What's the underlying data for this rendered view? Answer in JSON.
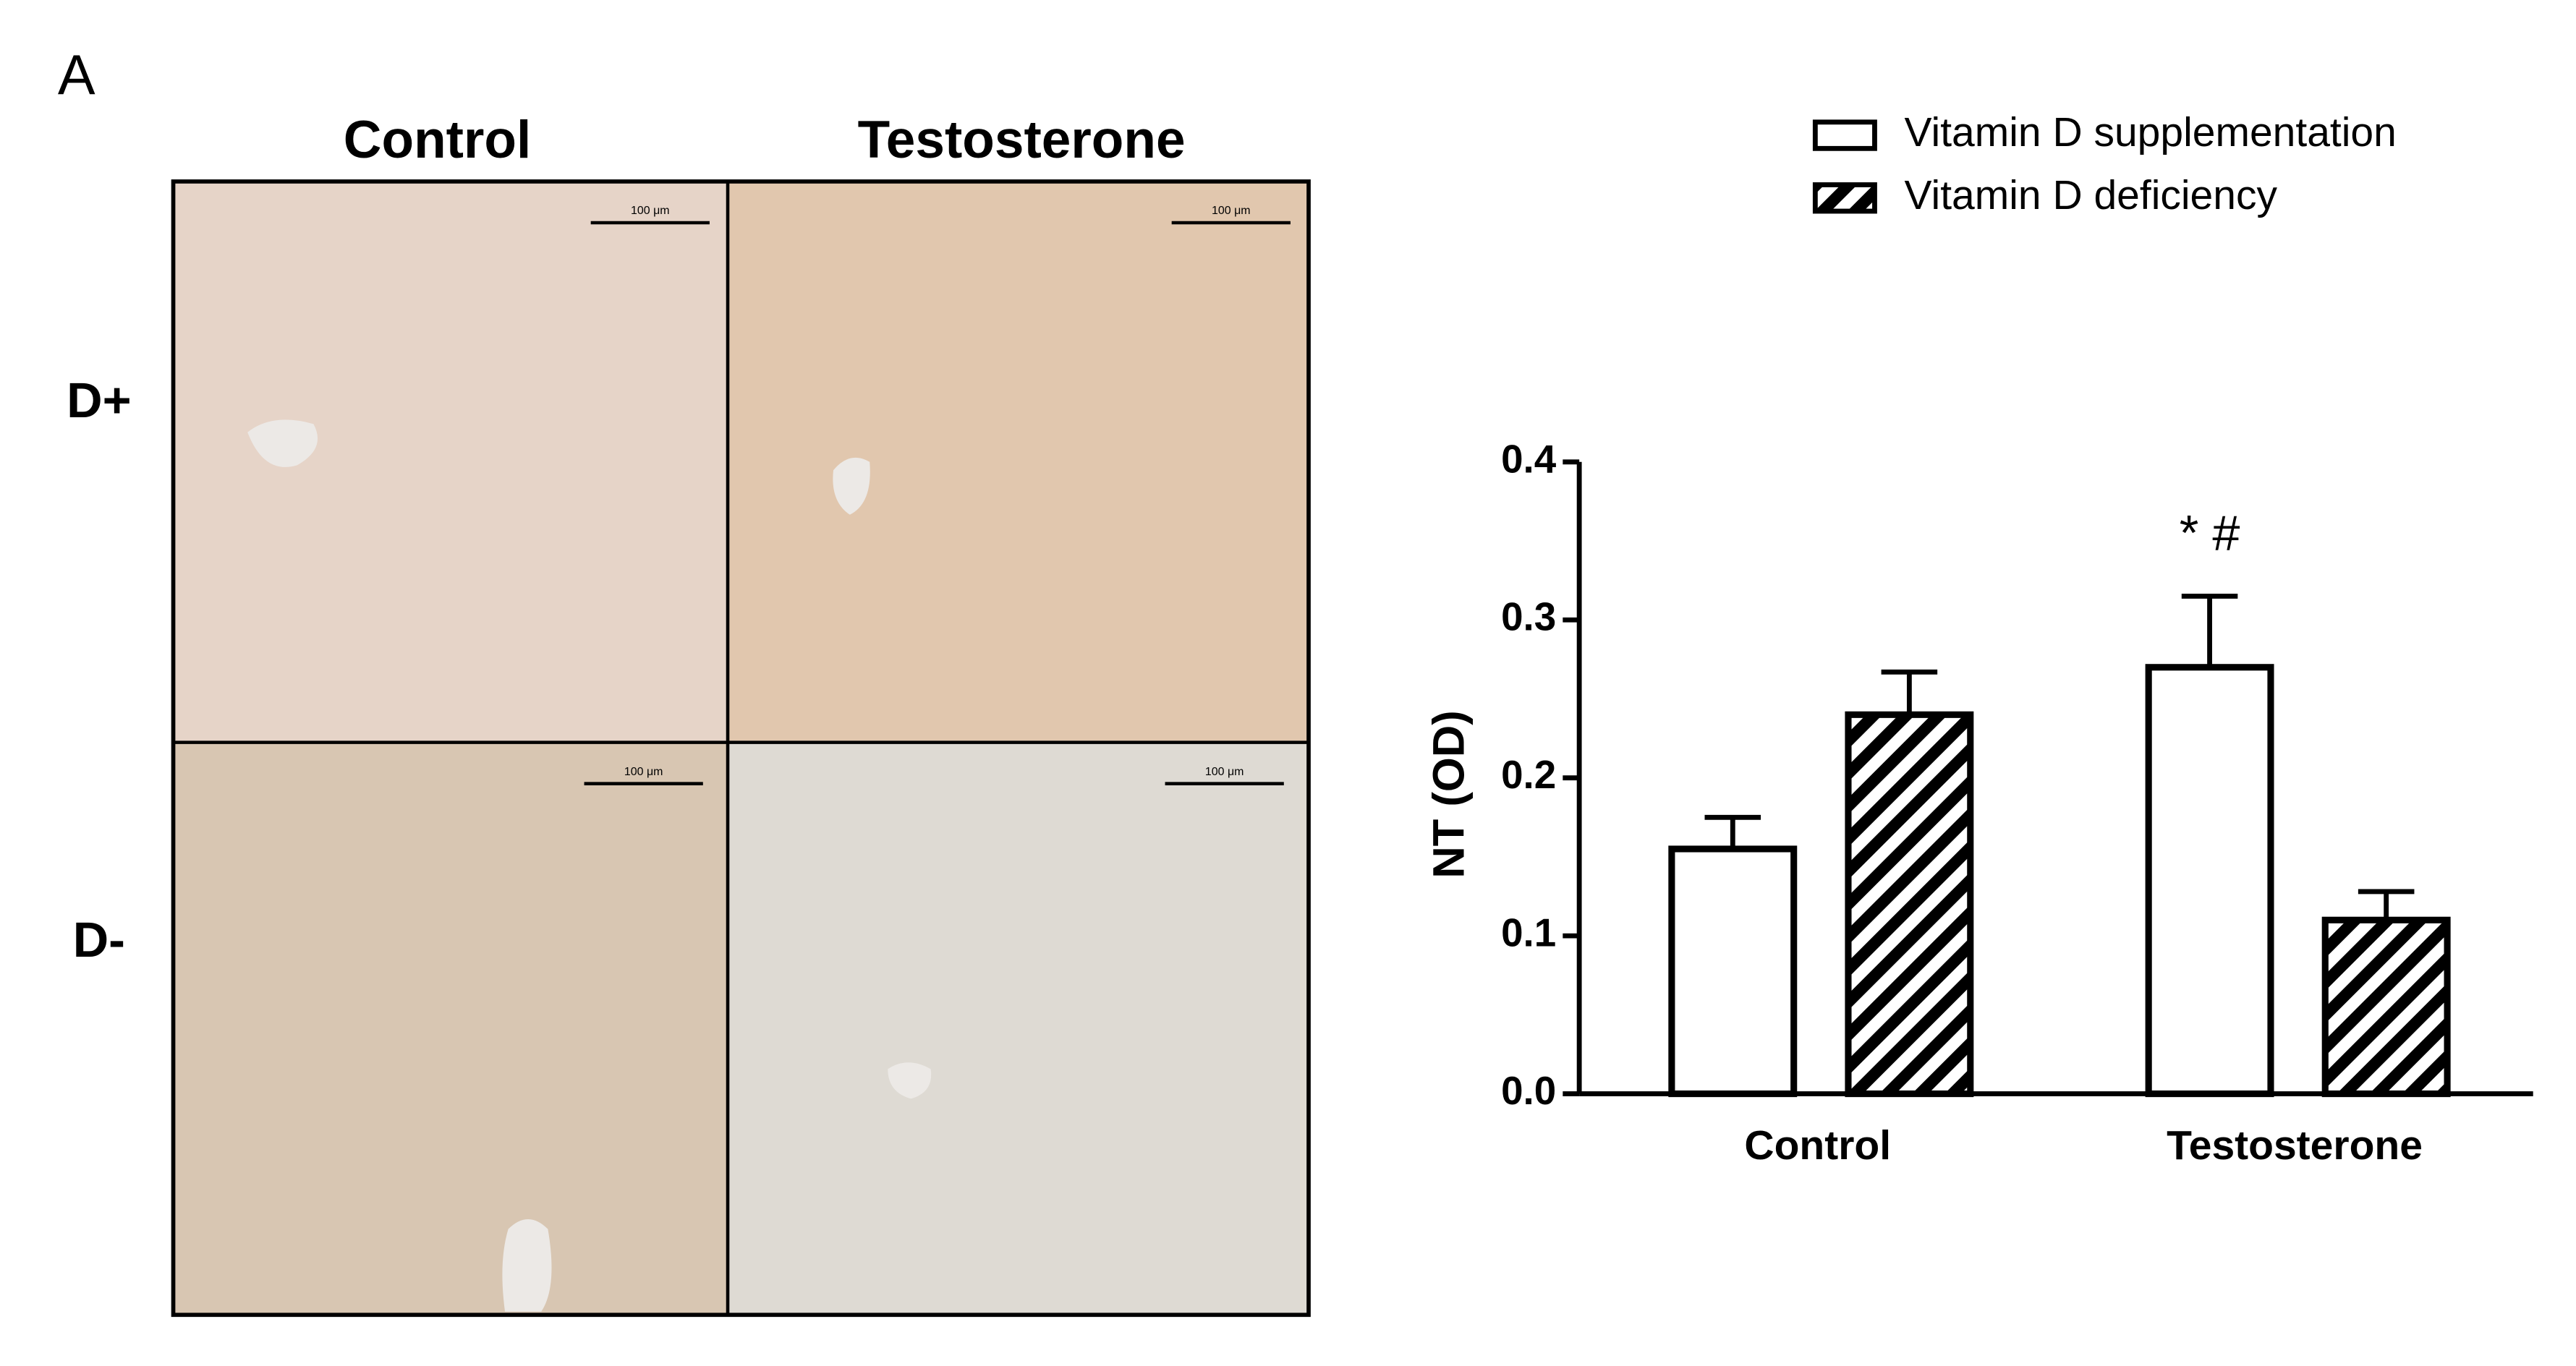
{
  "panel_label": "A",
  "micrographs": {
    "columns": [
      "Control",
      "Testosterone"
    ],
    "rows": [
      "D+",
      "D-"
    ],
    "scale_bar": "100 μm"
  },
  "chart_data": {
    "type": "bar",
    "categories": [
      "Control",
      "Testosterone"
    ],
    "series": [
      {
        "name": "Vitamin D supplementation",
        "color": "#ffffff",
        "values": [
          0.155,
          0.27
        ],
        "errors": [
          0.02,
          0.045
        ]
      },
      {
        "name": "Vitamin D deficiency",
        "color": "#000000",
        "pattern": "hatch",
        "values": [
          0.24,
          0.11
        ],
        "errors": [
          0.027,
          0.018
        ]
      }
    ],
    "y_label": "NT (OD)",
    "ylim": [
      0,
      0.4
    ],
    "yticks": [
      {
        "value": 0,
        "label": "0.0"
      },
      0.1,
      0.2,
      0.3,
      0.4
    ],
    "annotations": [
      "* #"
    ],
    "legend": "top"
  }
}
